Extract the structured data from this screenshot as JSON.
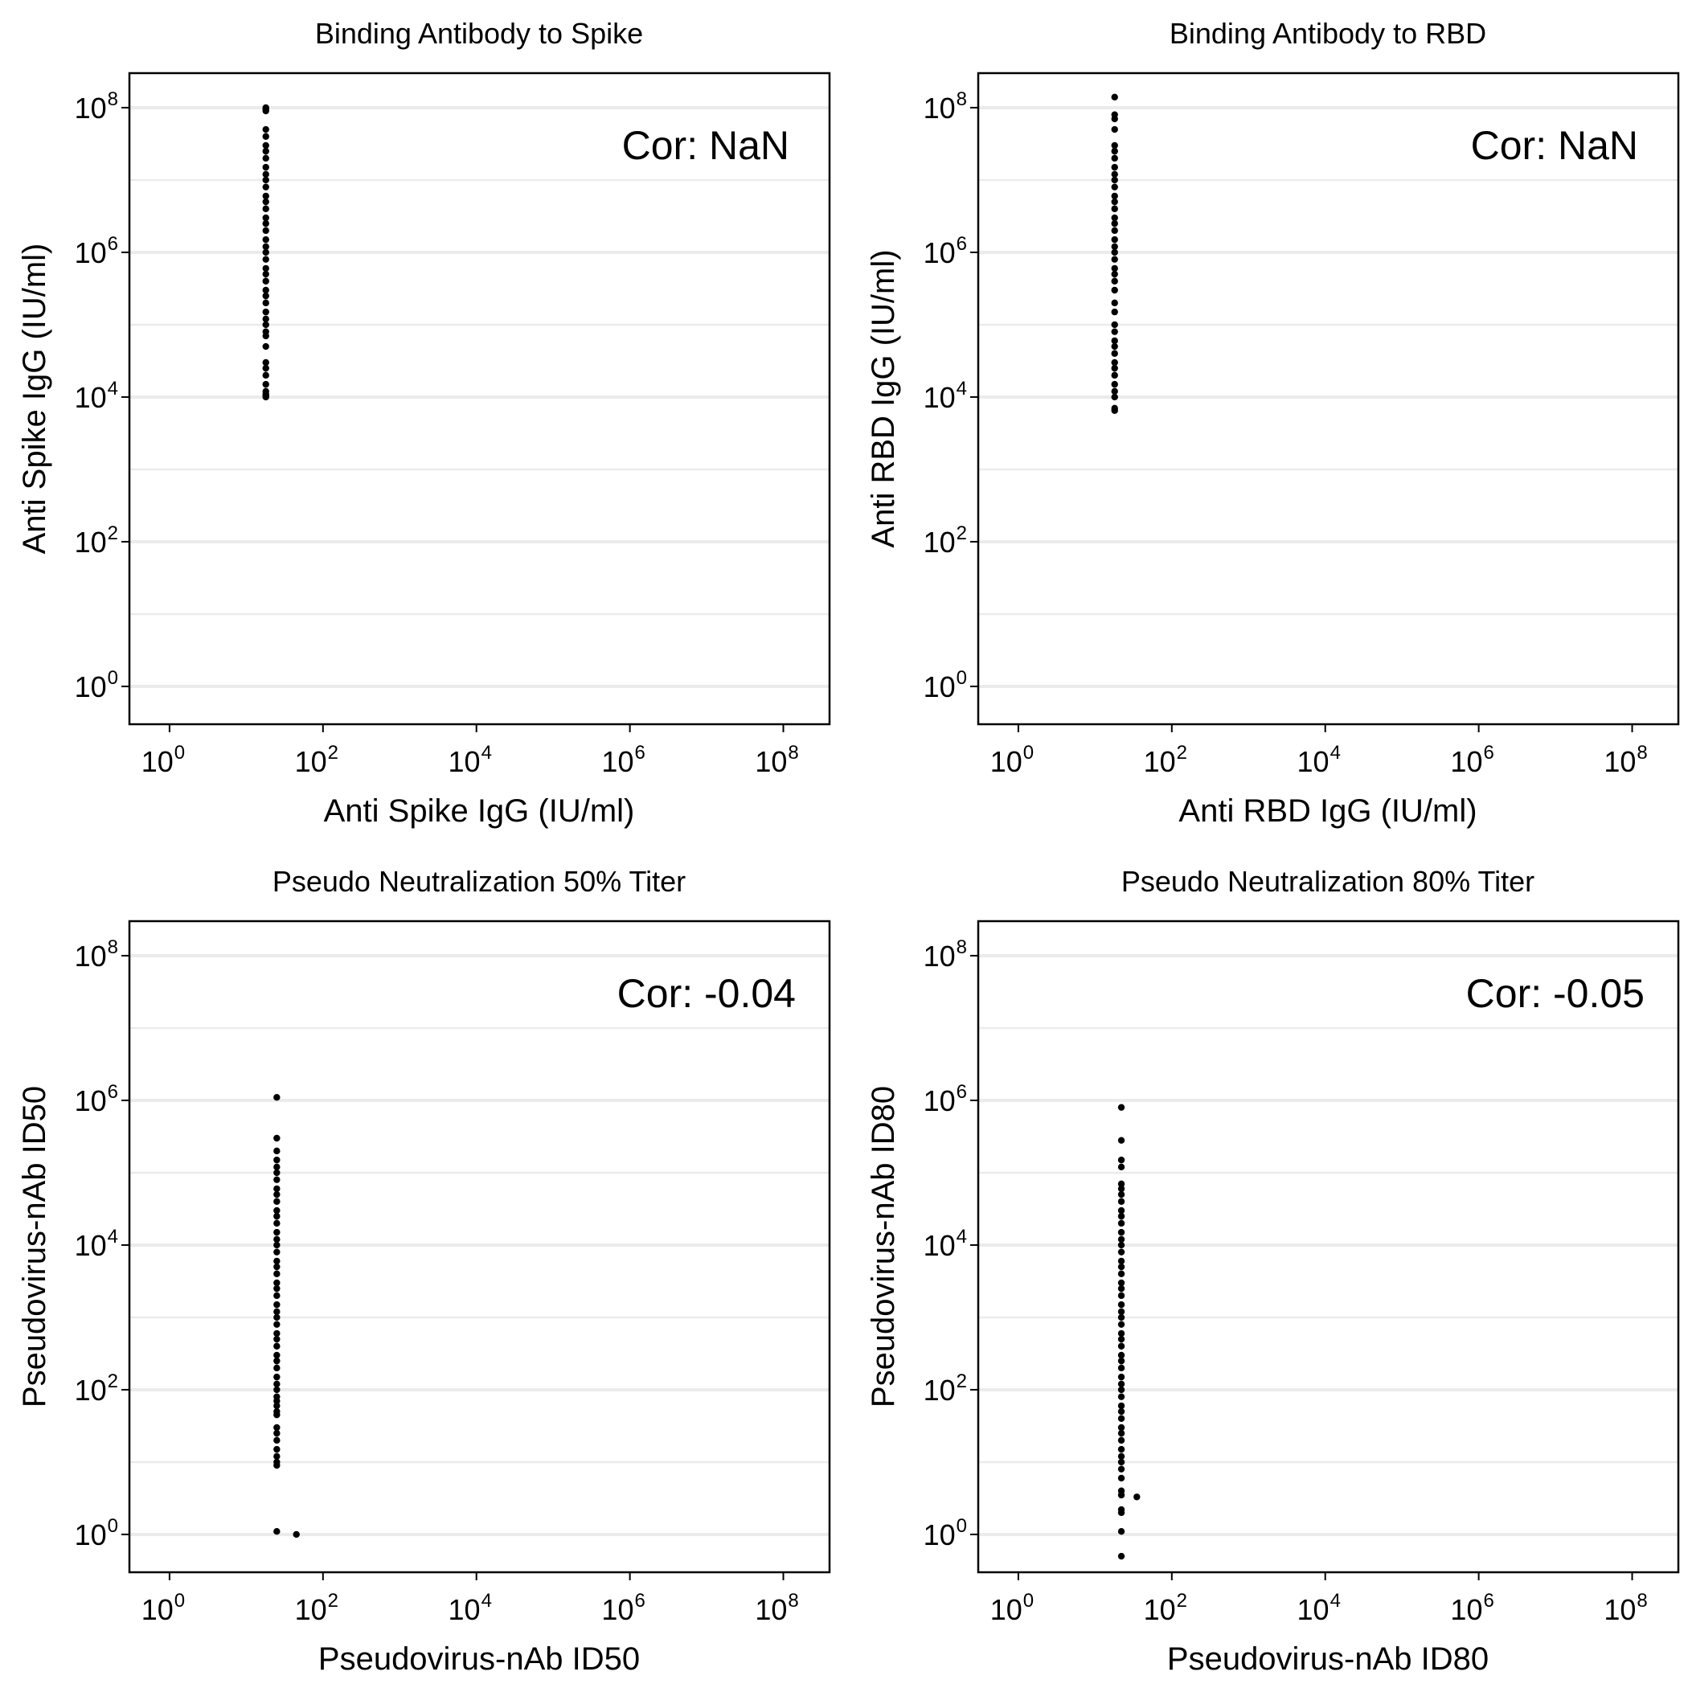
{
  "chart_data": [
    {
      "type": "scatter",
      "title": "Binding Antibody to Spike",
      "xlabel": "Anti Spike IgG (IU/ml)",
      "ylabel": "Anti Spike IgG (IU/ml)",
      "x_scale": "log10",
      "y_scale": "log10",
      "xlim": [
        0.3,
        400000000
      ],
      "ylim": [
        0.3,
        300000000
      ],
      "x_ticks": [
        1,
        100,
        10000,
        1000000,
        100000000
      ],
      "y_ticks": [
        1,
        100,
        10000,
        1000000,
        100000000
      ],
      "grid": "horizontal major and minor",
      "annotation": "Cor: NaN",
      "points": {
        "x": [
          18,
          18,
          18,
          18,
          18,
          18,
          18,
          18,
          18,
          18,
          18,
          18,
          18,
          18,
          18,
          18,
          18,
          18,
          18,
          18,
          18,
          18,
          18,
          18,
          18,
          18,
          18,
          18,
          18,
          18,
          18,
          18,
          18,
          18,
          18,
          18,
          18,
          18,
          18,
          18,
          18,
          18
        ],
        "y": [
          100000000,
          95000000,
          90000000,
          50000000,
          40000000,
          30000000,
          25000000,
          20000000,
          15000000,
          12000000,
          10000000,
          8000000,
          6000000,
          5000000,
          4000000,
          3000000,
          2500000,
          2000000,
          1500000,
          1200000,
          1000000,
          800000,
          600000,
          500000,
          400000,
          300000,
          250000,
          200000,
          150000,
          120000,
          100000,
          80000,
          70000,
          50000,
          30000,
          25000,
          20000,
          15000,
          12000,
          11000,
          10000,
          10500
        ]
      }
    },
    {
      "type": "scatter",
      "title": "Binding Antibody to RBD",
      "xlabel": "Anti RBD IgG (IU/ml)",
      "ylabel": "Anti RBD IgG (IU/ml)",
      "x_scale": "log10",
      "y_scale": "log10",
      "xlim": [
        0.3,
        400000000
      ],
      "ylim": [
        0.3,
        300000000
      ],
      "x_ticks": [
        1,
        100,
        10000,
        1000000,
        100000000
      ],
      "y_ticks": [
        1,
        100,
        10000,
        1000000,
        100000000
      ],
      "grid": "horizontal major and minor",
      "annotation": "Cor: NaN",
      "points": {
        "x": [
          18,
          18,
          18,
          18,
          18,
          18,
          18,
          18,
          18,
          18,
          18,
          18,
          18,
          18,
          18,
          18,
          18,
          18,
          18,
          18,
          18,
          18,
          18,
          18,
          18,
          18,
          18,
          18,
          18,
          18,
          18,
          18,
          18,
          18,
          18,
          18,
          18,
          18,
          18,
          18
        ],
        "y": [
          140000000,
          80000000,
          70000000,
          50000000,
          30000000,
          25000000,
          20000000,
          15000000,
          12000000,
          10000000,
          8000000,
          6000000,
          5000000,
          4000000,
          3000000,
          2500000,
          2000000,
          1500000,
          1200000,
          1000000,
          800000,
          600000,
          500000,
          400000,
          300000,
          200000,
          150000,
          100000,
          80000,
          60000,
          50000,
          40000,
          30000,
          25000,
          20000,
          15000,
          12000,
          10000,
          7000,
          6500
        ]
      }
    },
    {
      "type": "scatter",
      "title": "Pseudo Neutralization 50% Titer",
      "xlabel": "Pseudovirus-nAb ID50",
      "ylabel": "Pseudovirus-nAb ID50",
      "x_scale": "log10",
      "y_scale": "log10",
      "xlim": [
        0.3,
        400000000
      ],
      "ylim": [
        0.3,
        300000000
      ],
      "x_ticks": [
        1,
        100,
        10000,
        1000000,
        100000000
      ],
      "y_ticks": [
        1,
        100,
        10000,
        1000000,
        100000000
      ],
      "grid": "horizontal major and minor",
      "annotation": "Cor: -0.04",
      "points": {
        "x": [
          25,
          25,
          25,
          25,
          25,
          25,
          25,
          25,
          25,
          25,
          25,
          25,
          25,
          25,
          25,
          25,
          25,
          25,
          25,
          25,
          25,
          25,
          25,
          25,
          25,
          25,
          25,
          25,
          25,
          25,
          25,
          25,
          25,
          25,
          25,
          25,
          25,
          25,
          25,
          25,
          25,
          25,
          25,
          25,
          25,
          25,
          25,
          25,
          25,
          45
        ],
        "y": [
          1100000,
          300000,
          200000,
          150000,
          120000,
          100000,
          80000,
          60000,
          50000,
          40000,
          30000,
          25000,
          20000,
          15000,
          12000,
          10000,
          8000,
          6000,
          5000,
          4000,
          3000,
          2500,
          2000,
          1500,
          1200,
          1000,
          800,
          600,
          500,
          400,
          300,
          250,
          200,
          150,
          120,
          100,
          80,
          70,
          60,
          50,
          45,
          30,
          25,
          20,
          15,
          12,
          10,
          9,
          1.1,
          1.0
        ]
      }
    },
    {
      "type": "scatter",
      "title": "Pseudo Neutralization 80% Titer",
      "xlabel": "Pseudovirus-nAb ID80",
      "ylabel": "Pseudovirus-nAb ID80",
      "x_scale": "log10",
      "y_scale": "log10",
      "xlim": [
        0.3,
        400000000
      ],
      "ylim": [
        0.3,
        300000000
      ],
      "x_ticks": [
        1,
        100,
        10000,
        1000000,
        100000000
      ],
      "y_ticks": [
        1,
        100,
        10000,
        1000000,
        100000000
      ],
      "grid": "horizontal major and minor",
      "annotation": "Cor: -0.05",
      "points": {
        "x": [
          22,
          22,
          22,
          22,
          22,
          22,
          22,
          22,
          22,
          22,
          22,
          22,
          22,
          22,
          22,
          22,
          22,
          22,
          22,
          22,
          22,
          22,
          22,
          22,
          22,
          22,
          22,
          22,
          22,
          22,
          22,
          22,
          22,
          22,
          22,
          22,
          22,
          22,
          22,
          22,
          22,
          22,
          22,
          22,
          22,
          22,
          22,
          22,
          22,
          22,
          22,
          22,
          35
        ],
        "y": [
          800000,
          280000,
          150000,
          120000,
          70000,
          60000,
          50000,
          40000,
          30000,
          25000,
          20000,
          15000,
          12000,
          10000,
          8000,
          6000,
          5000,
          4000,
          3000,
          2500,
          2000,
          1500,
          1200,
          1000,
          800,
          600,
          500,
          400,
          300,
          250,
          200,
          150,
          120,
          100,
          80,
          60,
          50,
          40,
          30,
          25,
          20,
          15,
          12,
          10,
          8,
          6,
          4,
          3.5,
          2.2,
          2.0,
          1.1,
          0.5,
          3.3
        ]
      }
    }
  ]
}
